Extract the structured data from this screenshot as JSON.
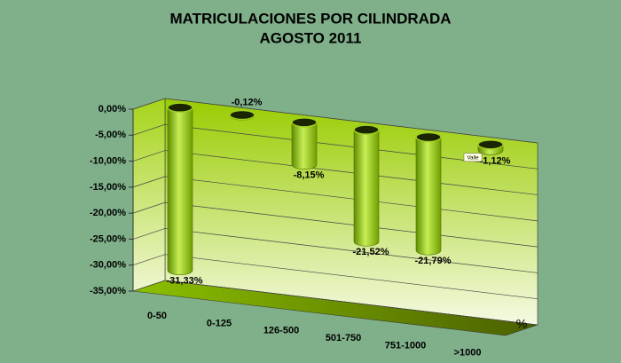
{
  "chart_data": {
    "type": "bar",
    "title": "MATRICULACIONES POR CILINDRADA",
    "subtitle": "AGOSTO 2011",
    "categories": [
      "0-50",
      "0-125",
      "126-500",
      "501-750",
      "751-1000",
      ">1000"
    ],
    "values": [
      -31.33,
      -0.12,
      -8.15,
      -21.52,
      -21.79,
      -1.12
    ],
    "value_labels": [
      "-31,33%",
      "-0,12%",
      "-8,15%",
      "-21,52%",
      "-21,79%",
      "-1,12%"
    ],
    "ylim": [
      -35,
      0
    ],
    "yticks": [
      {
        "value": 0,
        "label": "0,00%"
      },
      {
        "value": -5,
        "label": "-5,00%"
      },
      {
        "value": -10,
        "label": "-10,00%"
      },
      {
        "value": -15,
        "label": "-15,00%"
      },
      {
        "value": -20,
        "label": "-20,00%"
      },
      {
        "value": -25,
        "label": "-25,00%"
      },
      {
        "value": -30,
        "label": "-30,00%"
      },
      {
        "value": -35,
        "label": "-35,00%"
      }
    ],
    "x_axis_label": "%",
    "annotation": "Valle",
    "grid": true
  }
}
